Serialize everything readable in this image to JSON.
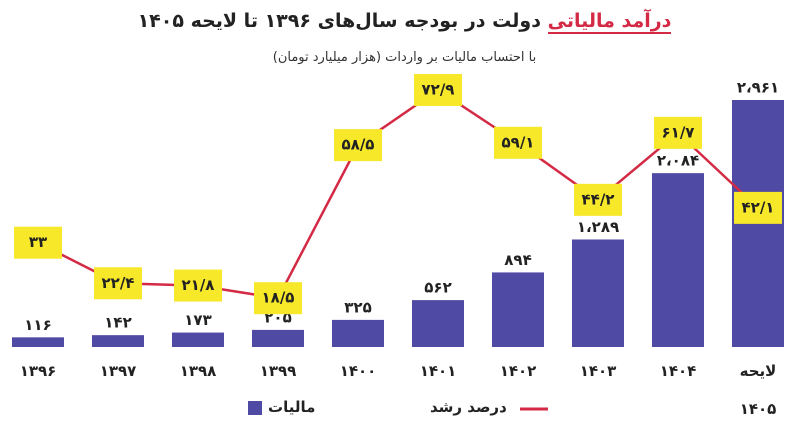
{
  "chart_data": {
    "type": "bar-line",
    "title_parts": [
      "درآمد مالیاتی",
      "دولت در بودجه سال‌های ۱۳۹۶ تا لایحه ۱۴۰۵"
    ],
    "subtitle": "با احتساب مالیات بر واردات (هزار میلیارد تومان)",
    "categories": [
      "۱۳۹۶",
      "۱۳۹۷",
      "۱۳۹۸",
      "۱۳۹۹",
      "۱۴۰۰",
      "۱۴۰۱",
      "۱۴۰۲",
      "۱۴۰۳",
      "۱۴۰۴",
      "لایحه ۱۴۰۵"
    ],
    "series": [
      {
        "name": "مالیات",
        "type": "bar",
        "color": "#4f4aa3",
        "values": [
          116,
          142,
          173,
          205,
          325,
          562,
          894,
          1289,
          2084,
          2961
        ],
        "value_labels": [
          "۱۱۶",
          "۱۴۲",
          "۱۷۳",
          "۲۰۵",
          "۳۲۵",
          "۵۶۲",
          "۸۹۴",
          "۱،۲۸۹",
          "۲،۰۸۴",
          "۲،۹۶۱"
        ]
      },
      {
        "name": "درصد رشد",
        "type": "line",
        "color": "#d42a45",
        "label_box_color": "#f7e82a",
        "values": [
          33,
          22.4,
          21.8,
          18.5,
          58.5,
          72.9,
          59.1,
          44.2,
          61.7,
          42.1
        ],
        "value_labels": [
          "۳۳",
          "۲۲/۴",
          "۲۱/۸",
          "۱۸/۵",
          "۵۸/۵",
          "۷۲/۹",
          "۵۹/۱",
          "۴۴/۲",
          "۶۱/۷",
          "۴۲/۱"
        ]
      }
    ]
  }
}
